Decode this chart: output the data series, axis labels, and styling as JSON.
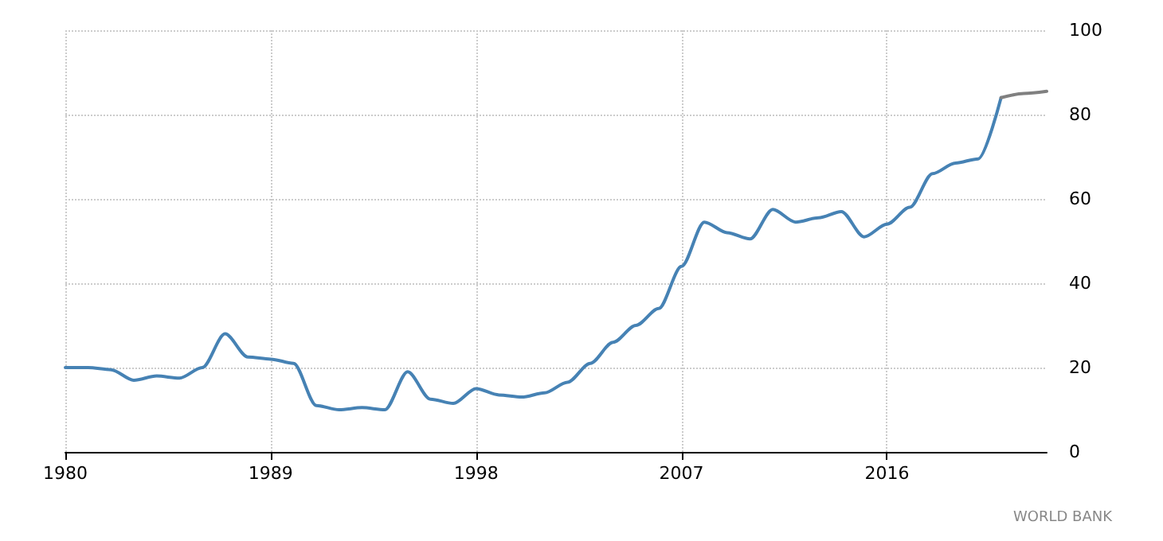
{
  "chart_data": {
    "type": "line",
    "annotations": [
      "WORLD BANK"
    ],
    "xlim": [
      1980,
      2023
    ],
    "xticks": [
      1980,
      1989,
      1998,
      2007,
      2016
    ],
    "ylim": [
      0,
      100
    ],
    "yticks": [
      0,
      20,
      40,
      60,
      80,
      100
    ],
    "grid": true,
    "marker": "none",
    "line_style": "solid",
    "series": [
      {
        "color": "#4682b4",
        "x": [
          1980,
          1981,
          1982,
          1983,
          1984,
          1985,
          1986,
          1987,
          1988,
          1989,
          1990,
          1991,
          1992,
          1993,
          1994,
          1995,
          1996,
          1997,
          1998,
          1999,
          2000,
          2001,
          2002,
          2003,
          2004,
          2005,
          2006,
          2007,
          2008,
          2009,
          2010,
          2011,
          2012,
          2013,
          2014,
          2015,
          2016,
          2017,
          2018,
          2019,
          2020,
          2021
        ],
        "values": [
          20,
          20,
          19.5,
          17,
          18,
          17.5,
          20,
          28,
          22.5,
          22,
          21,
          11,
          10,
          10.5,
          10,
          19,
          12.5,
          11.5,
          15,
          13.5,
          13,
          14,
          16.5,
          21,
          26,
          30,
          34,
          44,
          54.5,
          52,
          50.5,
          57.5,
          54.5,
          55.5,
          57,
          51,
          54,
          58,
          66,
          68.5,
          69.5,
          84
        ]
      },
      {
        "color": "#808080",
        "x": [
          2021,
          2022,
          2023
        ],
        "values": [
          84,
          85,
          85.5
        ]
      }
    ]
  }
}
